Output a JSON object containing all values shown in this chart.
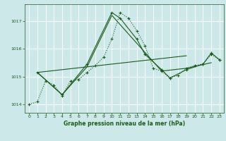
{
  "background_color": "#cce8e8",
  "grid_color": "#ffffff",
  "line_color": "#1a5c1a",
  "title": "Graphe pression niveau de la mer (hPa)",
  "xlim": [
    -0.5,
    23.5
  ],
  "ylim": [
    1013.7,
    1017.6
  ],
  "yticks": [
    1014,
    1015,
    1016,
    1017
  ],
  "xticks": [
    0,
    1,
    2,
    3,
    4,
    5,
    6,
    7,
    8,
    9,
    10,
    11,
    12,
    13,
    14,
    15,
    16,
    17,
    18,
    19,
    20,
    21,
    22,
    23
  ],
  "series": [
    {
      "x": [
        0,
        1,
        2,
        3,
        4,
        5,
        6,
        7,
        8,
        9,
        10,
        11,
        12,
        13,
        14,
        15,
        16,
        17,
        18,
        19,
        20,
        21,
        22,
        23
      ],
      "y": [
        1014.0,
        1014.1,
        1014.85,
        1014.7,
        1014.3,
        1014.85,
        1014.9,
        1015.15,
        1015.4,
        1015.7,
        1016.35,
        1017.3,
        1017.1,
        1016.65,
        1016.1,
        1015.3,
        1015.2,
        1014.95,
        1015.05,
        1015.3,
        1015.4,
        1015.45,
        1015.8,
        1015.6
      ],
      "linestyle": "dotted",
      "marker": "+"
    },
    {
      "x": [
        1,
        4,
        7,
        10,
        11,
        13,
        14,
        16,
        17,
        19,
        21,
        22,
        23
      ],
      "y": [
        1015.15,
        1014.35,
        1015.45,
        1017.3,
        1017.1,
        1016.35,
        1015.8,
        1015.25,
        1014.95,
        1015.25,
        1015.45,
        1015.85,
        1015.6
      ],
      "linestyle": "solid",
      "marker": "+"
    },
    {
      "x": [
        1,
        4,
        7,
        10,
        13,
        16,
        19,
        22
      ],
      "y": [
        1015.15,
        1014.35,
        1015.35,
        1017.2,
        1016.2,
        1015.2,
        1015.3,
        1015.5
      ],
      "linestyle": "solid",
      "marker": null
    },
    {
      "x": [
        1,
        7,
        13,
        19
      ],
      "y": [
        1015.15,
        1015.35,
        1015.55,
        1015.75
      ],
      "linestyle": "solid",
      "marker": null
    }
  ]
}
